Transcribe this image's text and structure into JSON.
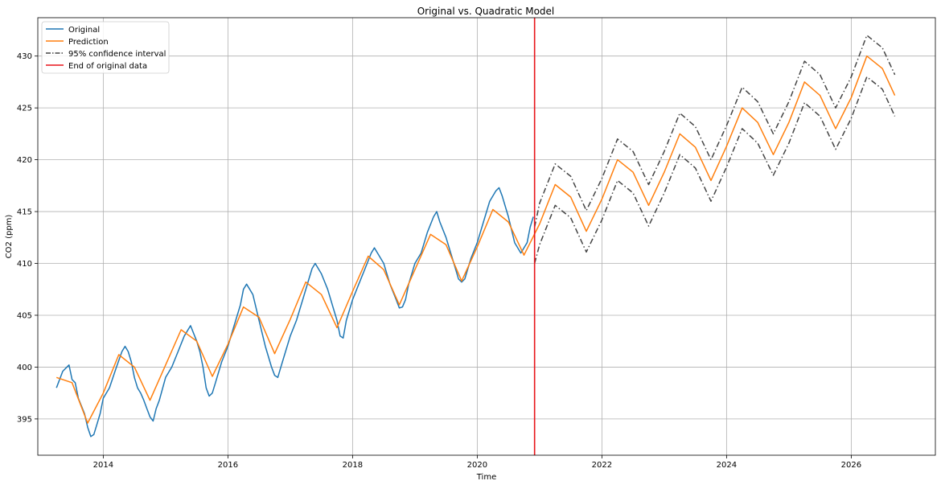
{
  "chart_data": {
    "type": "line",
    "title": "Original vs. Quadratic Model",
    "xlabel": "Time",
    "ylabel": "CO2 (ppm)",
    "xlim": [
      2012.95,
      2027.35
    ],
    "ylim": [
      391.5,
      433.7
    ],
    "x_ticks": [
      2014,
      2016,
      2018,
      2020,
      2022,
      2024,
      2026
    ],
    "x_tick_labels": [
      "2014",
      "2016",
      "2018",
      "2020",
      "2022",
      "2024",
      "2026"
    ],
    "y_ticks": [
      395,
      400,
      405,
      410,
      415,
      420,
      425,
      430
    ],
    "y_tick_labels": [
      "395",
      "400",
      "405",
      "410",
      "415",
      "420",
      "425",
      "430"
    ],
    "grid": true,
    "legend_position": "top-left",
    "legend": [
      {
        "label": "Original",
        "color": "#1f77b4",
        "style": "solid"
      },
      {
        "label": "Prediction",
        "color": "#ff7f0e",
        "style": "solid"
      },
      {
        "label": "95% confidence interval",
        "color": "#444444",
        "style": "dashdot"
      },
      {
        "label": "End of original data",
        "color": "#e8141a",
        "style": "solid"
      }
    ],
    "end_of_data_x": 2020.92,
    "series": [
      {
        "name": "Original",
        "color": "#1f77b4",
        "x": [
          2013.25,
          2013.35,
          2013.45,
          2013.5,
          2013.55,
          2013.6,
          2013.7,
          2013.75,
          2013.8,
          2013.85,
          2013.9,
          2013.95,
          2014.0,
          2014.1,
          2014.2,
          2014.3,
          2014.35,
          2014.4,
          2014.45,
          2014.5,
          2014.55,
          2014.6,
          2014.65,
          2014.7,
          2014.75,
          2014.8,
          2014.85,
          2014.9,
          2015.0,
          2015.1,
          2015.2,
          2015.3,
          2015.4,
          2015.5,
          2015.55,
          2015.6,
          2015.65,
          2015.7,
          2015.75,
          2015.8,
          2015.9,
          2016.0,
          2016.1,
          2016.2,
          2016.25,
          2016.3,
          2016.35,
          2016.4,
          2016.5,
          2016.6,
          2016.7,
          2016.75,
          2016.8,
          2016.85,
          2016.9,
          2017.0,
          2017.1,
          2017.2,
          2017.3,
          2017.35,
          2017.4,
          2017.5,
          2017.6,
          2017.7,
          2017.75,
          2017.8,
          2017.85,
          2017.9,
          2018.0,
          2018.1,
          2018.2,
          2018.3,
          2018.35,
          2018.4,
          2018.5,
          2018.6,
          2018.7,
          2018.75,
          2018.8,
          2018.85,
          2018.9,
          2019.0,
          2019.1,
          2019.2,
          2019.3,
          2019.35,
          2019.4,
          2019.5,
          2019.6,
          2019.65,
          2019.7,
          2019.75,
          2019.8,
          2019.9,
          2020.0,
          2020.1,
          2020.2,
          2020.3,
          2020.35,
          2020.4,
          2020.5,
          2020.6,
          2020.7,
          2020.8,
          2020.85,
          2020.9
        ],
        "y": [
          398.0,
          399.6,
          400.2,
          398.8,
          398.5,
          397.0,
          395.5,
          394.2,
          393.3,
          393.5,
          394.5,
          395.5,
          397.0,
          398.0,
          399.8,
          401.5,
          402.0,
          401.5,
          400.5,
          399.0,
          398.0,
          397.5,
          396.8,
          396.0,
          395.2,
          394.8,
          396.0,
          396.8,
          399.0,
          400.0,
          401.5,
          403.0,
          404.0,
          402.5,
          401.5,
          400.0,
          398.0,
          397.2,
          397.5,
          398.5,
          400.5,
          402.0,
          404.0,
          406.0,
          407.5,
          408.0,
          407.5,
          407.0,
          404.5,
          402.0,
          400.0,
          399.2,
          399.0,
          400.0,
          401.0,
          403.0,
          404.5,
          406.5,
          408.5,
          409.5,
          410.0,
          409.0,
          407.5,
          405.5,
          404.5,
          403.0,
          402.8,
          404.5,
          406.5,
          408.0,
          409.5,
          411.0,
          411.5,
          411.0,
          410.0,
          408.0,
          406.5,
          405.7,
          405.8,
          406.5,
          408.0,
          410.0,
          411.0,
          413.0,
          414.5,
          415.0,
          414.0,
          412.5,
          410.5,
          409.5,
          408.5,
          408.2,
          408.5,
          410.5,
          412.0,
          414.0,
          416.0,
          417.0,
          417.3,
          416.5,
          414.5,
          412.0,
          411.0,
          412.0,
          413.5,
          414.5
        ]
      },
      {
        "name": "Prediction",
        "color": "#ff7f0e",
        "x": [
          2013.25,
          2013.5,
          2013.75,
          2014.0,
          2014.25,
          2014.5,
          2014.75,
          2015.0,
          2015.25,
          2015.5,
          2015.75,
          2016.0,
          2016.25,
          2016.5,
          2016.75,
          2017.0,
          2017.25,
          2017.5,
          2017.75,
          2018.0,
          2018.25,
          2018.5,
          2018.75,
          2019.0,
          2019.25,
          2019.5,
          2019.75,
          2020.0,
          2020.25,
          2020.5,
          2020.75,
          2021.0,
          2021.25,
          2021.5,
          2021.75,
          2022.0,
          2022.25,
          2022.5,
          2022.75,
          2023.0,
          2023.25,
          2023.5,
          2023.75,
          2024.0,
          2024.25,
          2024.5,
          2024.75,
          2025.0,
          2025.25,
          2025.5,
          2025.75,
          2026.0,
          2026.25,
          2026.5,
          2026.7
        ],
        "y": [
          399.0,
          398.5,
          394.6,
          397.5,
          401.2,
          400.0,
          396.8,
          400.2,
          403.6,
          402.5,
          399.1,
          402.2,
          405.8,
          404.8,
          401.3,
          404.6,
          408.2,
          407.0,
          403.8,
          407.3,
          410.7,
          409.4,
          406.0,
          409.4,
          412.8,
          411.8,
          408.3,
          411.6,
          415.2,
          414.0,
          410.8,
          413.8,
          417.6,
          416.4,
          413.1,
          416.2,
          420.0,
          418.8,
          415.6,
          418.8,
          422.5,
          421.2,
          418.0,
          421.3,
          425.0,
          423.6,
          420.5,
          423.6,
          427.5,
          426.2,
          423.0,
          426.0,
          430.0,
          428.8,
          426.2
        ]
      },
      {
        "name": "95% confidence interval (upper)",
        "color": "#444444",
        "x": [
          2020.92,
          2021.0,
          2021.25,
          2021.5,
          2021.75,
          2022.0,
          2022.25,
          2022.5,
          2022.75,
          2023.0,
          2023.25,
          2023.5,
          2023.75,
          2024.0,
          2024.25,
          2024.5,
          2024.75,
          2025.0,
          2025.25,
          2025.5,
          2025.75,
          2026.0,
          2026.25,
          2026.5,
          2026.7
        ],
        "y": [
          413.5,
          415.8,
          419.6,
          418.4,
          415.1,
          418.2,
          422.0,
          420.8,
          417.6,
          420.8,
          424.5,
          423.2,
          420.0,
          423.3,
          427.0,
          425.6,
          422.5,
          425.6,
          429.5,
          428.2,
          425.0,
          428.0,
          432.0,
          430.8,
          428.2
        ]
      },
      {
        "name": "95% confidence interval (lower)",
        "color": "#444444",
        "x": [
          2020.92,
          2021.0,
          2021.25,
          2021.5,
          2021.75,
          2022.0,
          2022.25,
          2022.5,
          2022.75,
          2023.0,
          2023.25,
          2023.5,
          2023.75,
          2024.0,
          2024.25,
          2024.5,
          2024.75,
          2025.0,
          2025.25,
          2025.5,
          2025.75,
          2026.0,
          2026.25,
          2026.5,
          2026.7
        ],
        "y": [
          410.0,
          411.8,
          415.6,
          414.4,
          411.1,
          414.2,
          418.0,
          416.8,
          413.6,
          416.8,
          420.5,
          419.2,
          416.0,
          419.3,
          423.0,
          421.6,
          418.5,
          421.6,
          425.5,
          424.2,
          421.0,
          424.0,
          428.0,
          426.8,
          424.2
        ]
      }
    ]
  }
}
